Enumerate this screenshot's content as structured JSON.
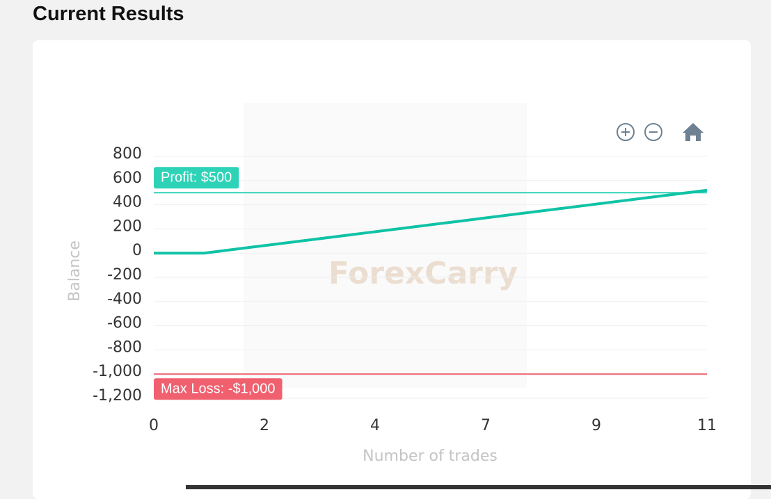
{
  "chart_data": {
    "type": "line",
    "title": "Current Results",
    "x": [
      0,
      1,
      2,
      3,
      4,
      5,
      6,
      7,
      8,
      9,
      10,
      11
    ],
    "series": [
      {
        "name": "Balance",
        "color": "#10c2a6",
        "values": [
          0,
          0,
          52,
          104,
          156,
          208,
          260,
          312,
          364,
          416,
          468,
          520
        ]
      }
    ],
    "xlim": [
      0,
      11
    ],
    "xticks": [
      0,
      {
        "value": 2.2,
        "label": "2"
      },
      {
        "value": 4.4,
        "label": "4"
      },
      {
        "value": 6.6,
        "label": "7"
      },
      {
        "value": 8.8,
        "label": "9"
      },
      11
    ],
    "ylim": [
      -1200,
      800
    ],
    "yticks": [
      {
        "value": -1200,
        "label": "-1,200"
      },
      {
        "value": -1000,
        "label": "-1,000"
      },
      -800,
      -600,
      -400,
      -200,
      0,
      200,
      400,
      600,
      800
    ],
    "xlabel": "Number of trades",
    "ylabel": "Balance",
    "grid": true,
    "annotations": [
      {
        "y": 500,
        "label": "Profit: $500",
        "color": "#2ed3b7"
      },
      {
        "y": -1000,
        "label": "Max Loss: -$1,000",
        "color": "#f0606f"
      }
    ],
    "watermark": "ForexCarry"
  }
}
